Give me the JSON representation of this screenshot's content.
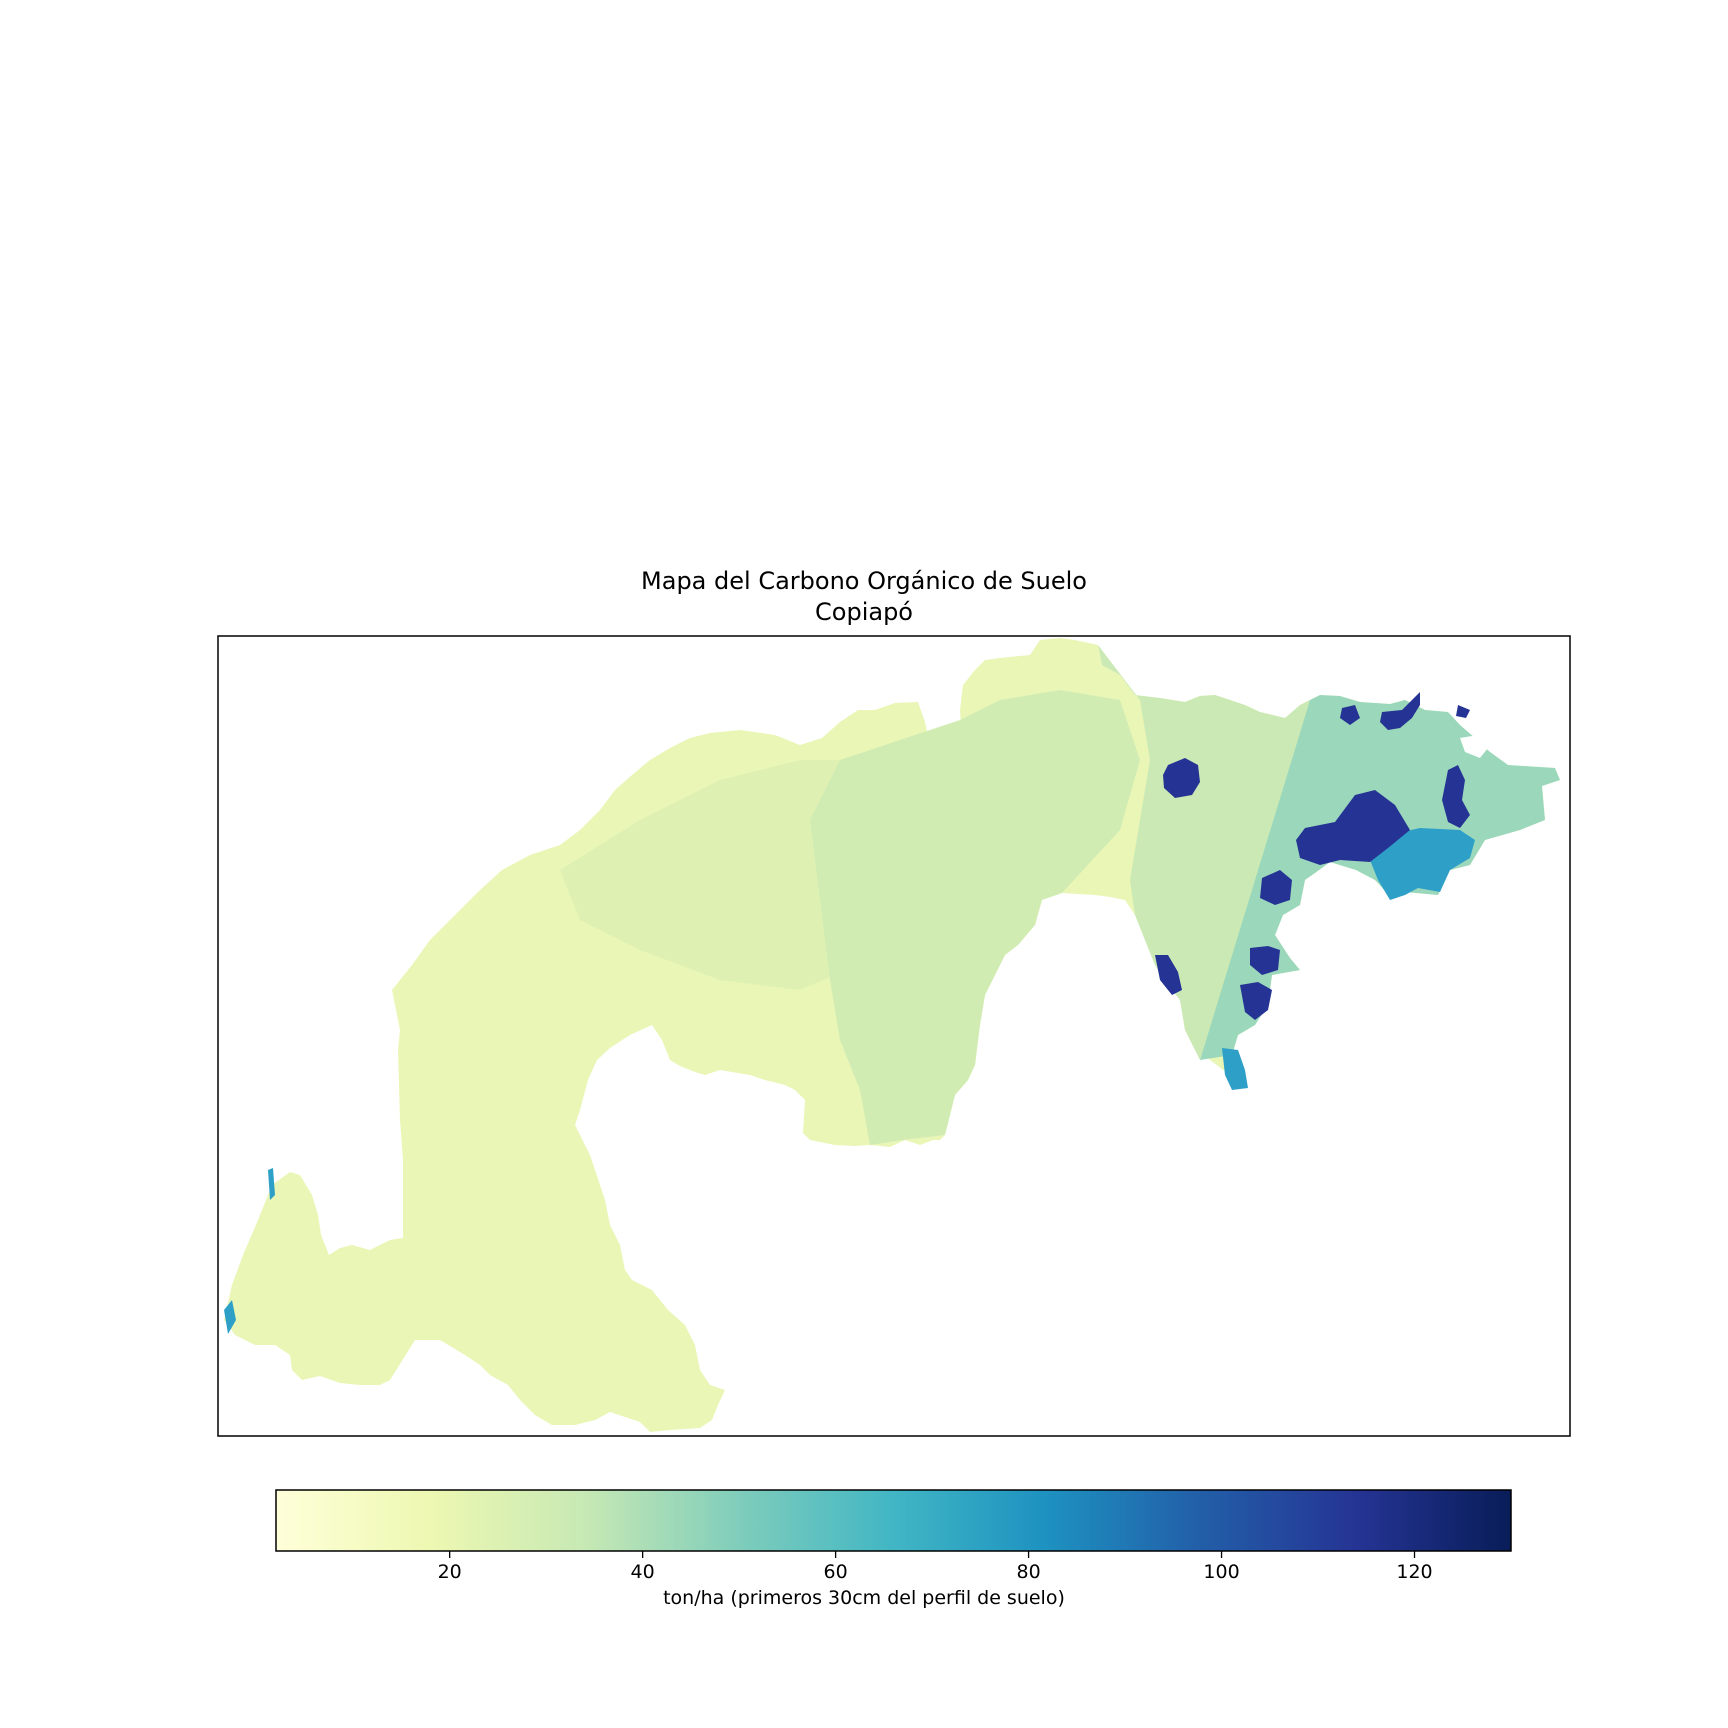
{
  "title": "Mapa del Carbono Orgánico de Suelo",
  "subtitle": "Copiapó",
  "colorbar": {
    "label": "ton/ha (primeros 30cm del perfil de suelo)",
    "min": 2,
    "max": 130,
    "ticks": [
      20,
      40,
      60,
      80,
      100,
      120
    ],
    "colormap": "YlGnBu",
    "stops": [
      "#ffffd9",
      "#edf8b1",
      "#c7e9b4",
      "#7fcdbb",
      "#41b6c4",
      "#1d91c0",
      "#225ea8",
      "#253494",
      "#081d58"
    ]
  },
  "chart_data": {
    "type": "heatmap",
    "title": "Mapa del Carbono Orgánico de Suelo",
    "subtitle": "Copiapó",
    "colorbar_label": "ton/ha (primeros 30cm del perfil de suelo)",
    "value_range": [
      2,
      130
    ],
    "regions": [
      {
        "area": "west and southwest",
        "value": 18
      },
      {
        "area": "central",
        "value": 27
      },
      {
        "area": "central-east",
        "value": 33
      },
      {
        "area": "northeast",
        "value": 45
      },
      {
        "area": "northeast patches",
        "value": 115
      },
      {
        "area": "east",
        "value": 72
      }
    ]
  }
}
